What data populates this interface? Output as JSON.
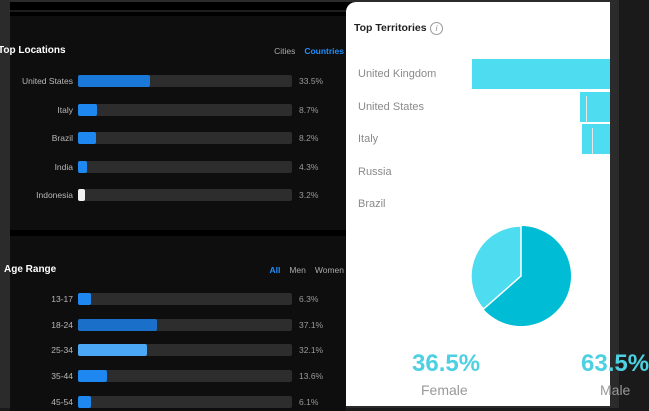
{
  "locations": {
    "title": "Top Locations",
    "filters": [
      "Cities",
      "Countries"
    ],
    "active_filter": "Countries",
    "rows": [
      {
        "label": "United States",
        "value": "33.5%",
        "fraction": 0.335,
        "color": "#1a78d8"
      },
      {
        "label": "Italy",
        "value": "8.7%",
        "fraction": 0.087,
        "color": "#1e88f0"
      },
      {
        "label": "Brazil",
        "value": "8.2%",
        "fraction": 0.082,
        "color": "#1e88f0"
      },
      {
        "label": "India",
        "value": "4.3%",
        "fraction": 0.043,
        "color": "#1e88f0"
      },
      {
        "label": "Indonesia",
        "value": "3.2%",
        "fraction": 0.032,
        "color": "#f2f2f2"
      }
    ]
  },
  "age": {
    "title": "Age Range",
    "filters": [
      "All",
      "Men",
      "Women"
    ],
    "active_filter": "All",
    "rows": [
      {
        "label": "13-17",
        "value": "6.3%",
        "fraction": 0.063,
        "color": "#1e88f0"
      },
      {
        "label": "18-24",
        "value": "37.1%",
        "fraction": 0.371,
        "color": "#1a70c8"
      },
      {
        "label": "25-34",
        "value": "32.1%",
        "fraction": 0.321,
        "color": "#4aa8f5"
      },
      {
        "label": "35-44",
        "value": "13.6%",
        "fraction": 0.136,
        "color": "#1e88f0"
      },
      {
        "label": "45-54",
        "value": "6.1%",
        "fraction": 0.061,
        "color": "#1e88f0"
      }
    ]
  },
  "territories": {
    "title": "Top Territories",
    "info_icon": "info-icon",
    "rows": [
      {
        "label": "United Kingdom",
        "fraction": 1.0
      },
      {
        "label": "United States",
        "fraction": 0.22
      },
      {
        "label": "Italy",
        "fraction": 0.2
      },
      {
        "label": "Russia",
        "fraction": 0
      },
      {
        "label": "Brazil",
        "fraction": 0
      }
    ]
  },
  "gender": {
    "female_value": "36.5%",
    "female_label": "Female",
    "male_value": "63.5%",
    "male_label": "Male",
    "female_fraction": 0.365,
    "female_color": "#4ddcf0",
    "male_color": "#00bcd4"
  }
}
